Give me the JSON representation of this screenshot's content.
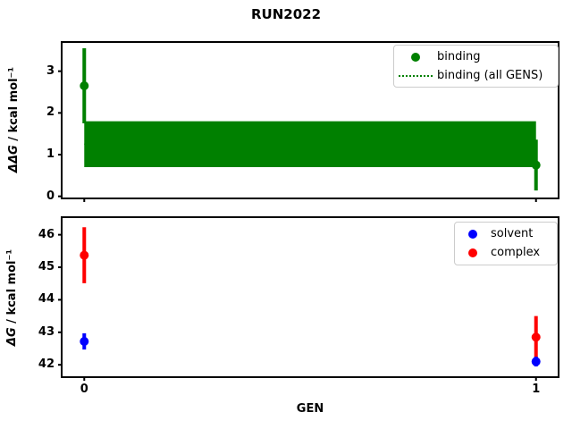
{
  "title": "RUN2022",
  "colors": {
    "binding_green": "#008000",
    "solvent_blue": "#0000ff",
    "complex_red": "#ff0000",
    "spine_black": "#000000",
    "legend_border": "#cccccc"
  },
  "chart_data": [
    {
      "type": "scatter",
      "panel": "top",
      "ylabel_math": "ΔΔG",
      "ylabel_rest": " / kcal mol⁻¹",
      "xlabel": "",
      "xlim": [
        -0.05,
        1.05
      ],
      "ylim": [
        -0.05,
        3.7
      ],
      "xticks": [
        0,
        1
      ],
      "xtick_labels": [
        "0",
        "1"
      ],
      "xtick_labels_visible": false,
      "yticks": [
        0,
        1,
        2,
        3
      ],
      "ytick_labels": [
        "0",
        "1",
        "2",
        "3"
      ],
      "grid": false,
      "legend_position": "upper right",
      "legend": [
        {
          "label": "binding",
          "marker": "dot",
          "color": "#008000"
        },
        {
          "label": "binding (all GENS)",
          "marker": "dotted-line",
          "color": "#008000"
        }
      ],
      "series": [
        {
          "name": "binding",
          "color": "#008000",
          "points": [
            {
              "x": 0,
              "y": 2.65,
              "yerr": 0.9
            },
            {
              "x": 1,
              "y": 0.75,
              "yerr": 0.61
            }
          ]
        }
      ],
      "band": {
        "name": "binding (all GENS)",
        "color": "#008000",
        "center": 1.25,
        "lo": 0.7,
        "hi": 1.8,
        "x_from": 0,
        "x_to": 1
      }
    },
    {
      "type": "scatter",
      "panel": "bottom",
      "ylabel_math": "ΔG",
      "ylabel_rest": " / kcal mol⁻¹",
      "xlabel": "GEN",
      "xlim": [
        -0.05,
        1.05
      ],
      "ylim": [
        41.62,
        46.54
      ],
      "xticks": [
        0,
        1
      ],
      "xtick_labels": [
        "0",
        "1"
      ],
      "xtick_labels_visible": true,
      "yticks": [
        42,
        43,
        44,
        45,
        46
      ],
      "ytick_labels": [
        "42",
        "43",
        "44",
        "45",
        "46"
      ],
      "grid": false,
      "legend_position": "upper right",
      "legend": [
        {
          "label": "solvent",
          "marker": "dot",
          "color": "#0000ff"
        },
        {
          "label": "complex",
          "marker": "dot",
          "color": "#ff0000"
        }
      ],
      "series": [
        {
          "name": "complex",
          "color": "#ff0000",
          "points": [
            {
              "x": 0,
              "y": 45.37,
              "yerr": 0.86
            },
            {
              "x": 1,
              "y": 42.85,
              "yerr": 0.65
            }
          ]
        },
        {
          "name": "solvent",
          "color": "#0000ff",
          "points": [
            {
              "x": 0,
              "y": 42.72,
              "yerr": 0.25
            },
            {
              "x": 1,
              "y": 42.1,
              "yerr": 0.15
            }
          ]
        }
      ]
    }
  ]
}
